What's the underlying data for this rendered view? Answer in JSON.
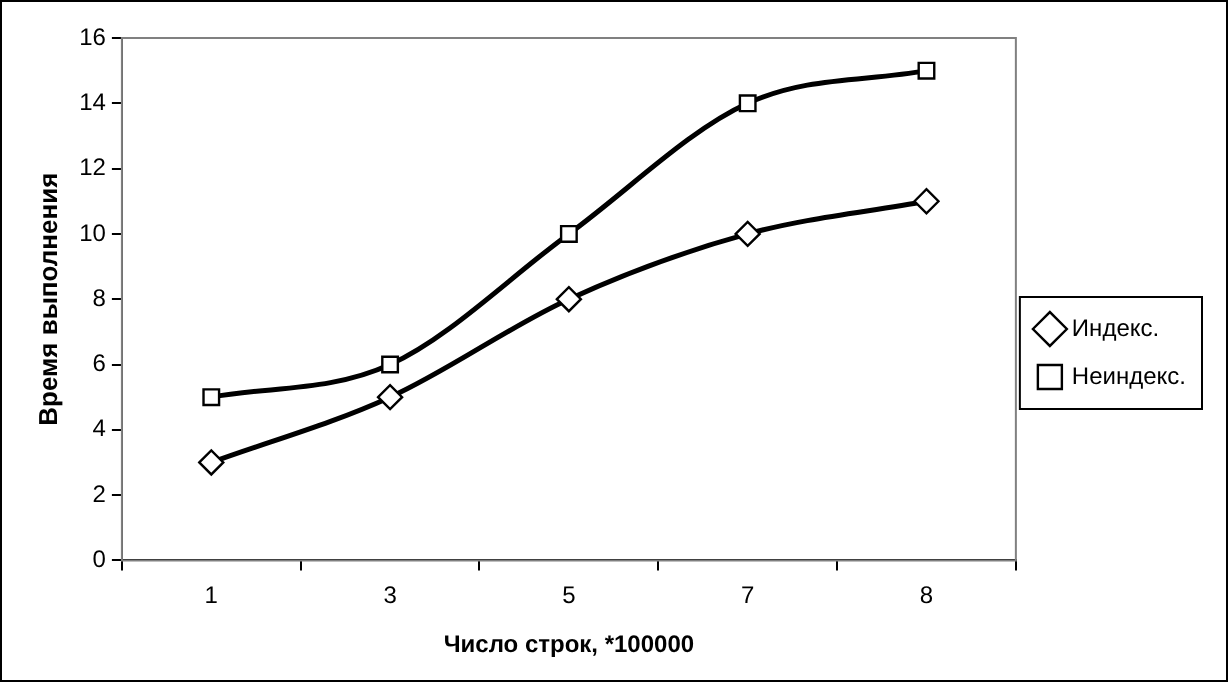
{
  "chart_data": {
    "type": "line",
    "xlabel": "Число строк, *100000",
    "ylabel": "Время выполнения",
    "categories": [
      "1",
      "3",
      "5",
      "7",
      "8"
    ],
    "series": [
      {
        "name": "Индекс.",
        "color": "#000000",
        "marker": "diamond",
        "values": [
          3,
          5,
          8,
          10,
          11
        ]
      },
      {
        "name": "Неиндекс.",
        "color": "#000000",
        "marker": "square",
        "values": [
          5,
          6,
          10,
          14,
          15
        ]
      }
    ],
    "ylim": [
      0,
      16
    ],
    "yticks": [
      0,
      2,
      4,
      6,
      8,
      10,
      12,
      14,
      16
    ],
    "grid": false,
    "legend": "right"
  }
}
